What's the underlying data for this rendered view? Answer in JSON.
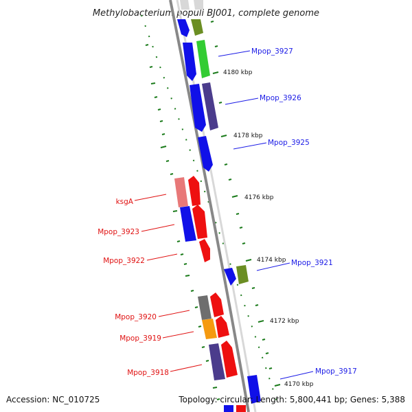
{
  "title": "Methylobacterium populi BJ001, complete genome",
  "footer": {
    "accession": "Accession: NC_010725",
    "topology": "Topology: circular; Length: 5,800,441 bp; Genes: 5,388"
  },
  "ticks": [
    {
      "label": "4180 kbp"
    },
    {
      "label": "4178 kbp"
    },
    {
      "label": "4176 kbp"
    },
    {
      "label": "4174 kbp"
    },
    {
      "label": "4172 kbp"
    },
    {
      "label": "4170 kbp"
    }
  ],
  "genes_right": [
    {
      "label": "Mpop_3927"
    },
    {
      "label": "Mpop_3926"
    },
    {
      "label": "Mpop_3925"
    },
    {
      "label": "Mpop_3921"
    },
    {
      "label": "Mpop_3917"
    }
  ],
  "genes_left": [
    {
      "label": "ksgA"
    },
    {
      "label": "Mpop_3923"
    },
    {
      "label": "Mpop_3922"
    },
    {
      "label": "Mpop_3920"
    },
    {
      "label": "Mpop_3919"
    },
    {
      "label": "Mpop_3918"
    }
  ],
  "colors": {
    "blue": "#1010e8",
    "red": "#ee1010",
    "green": "#33cc33",
    "olive": "#6b8e23",
    "navy": "#4b3c8c",
    "pink": "#e87878",
    "gray": "#6e6e6e",
    "orange": "#f59a10",
    "tick": "#1a7a1a",
    "backbone": "#888888"
  }
}
